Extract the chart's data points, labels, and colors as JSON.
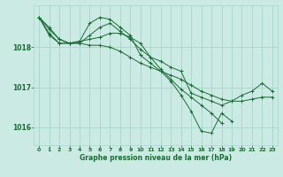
{
  "bg_color": "#cceae4",
  "grid_color": "#a8d5cc",
  "line_color": "#1a6b35",
  "marker_color": "#1a6b35",
  "xlabel": "Graphe pression niveau de la mer (hPa)",
  "xlim": [
    -0.5,
    23.5
  ],
  "ylim": [
    1015.55,
    1019.05
  ],
  "yticks": [
    1016,
    1017,
    1018
  ],
  "xticks": [
    0,
    1,
    2,
    3,
    4,
    5,
    6,
    7,
    8,
    9,
    10,
    11,
    12,
    13,
    14,
    15,
    16,
    17,
    18,
    19,
    20,
    21,
    22,
    23
  ],
  "series": [
    [
      1018.75,
      1018.5,
      1018.2,
      1018.1,
      1018.1,
      1018.05,
      1018.05,
      1018.0,
      1017.9,
      1017.75,
      1017.6,
      1017.5,
      1017.4,
      1017.3,
      1017.2,
      1017.05,
      1016.9,
      1016.8,
      1016.7,
      1016.65,
      1016.65,
      1016.7,
      1016.75,
      1016.75
    ],
    [
      1018.75,
      1018.45,
      1018.2,
      1018.1,
      1018.1,
      1018.3,
      1018.5,
      1018.6,
      1018.4,
      1018.2,
      1017.95,
      1017.75,
      1017.65,
      1017.5,
      1017.4,
      1016.85,
      1016.75,
      1016.65,
      1016.55,
      1016.65,
      1016.8,
      1016.9,
      1017.1,
      1016.9
    ],
    [
      1018.75,
      1018.35,
      1018.1,
      1018.1,
      1018.15,
      1018.6,
      1018.75,
      1018.7,
      1018.5,
      1018.3,
      1017.8,
      1017.6,
      1017.4,
      1017.15,
      1016.8,
      1016.4,
      1015.9,
      1015.85,
      1016.35,
      1016.15,
      null,
      null,
      null,
      null
    ],
    [
      1018.75,
      1018.3,
      1018.1,
      1018.1,
      1018.15,
      1018.2,
      1018.25,
      1018.35,
      1018.35,
      1018.25,
      1018.1,
      1017.75,
      1017.45,
      1017.2,
      1016.95,
      1016.75,
      1016.55,
      1016.35,
      1016.1,
      null,
      null,
      null,
      null,
      null
    ]
  ]
}
